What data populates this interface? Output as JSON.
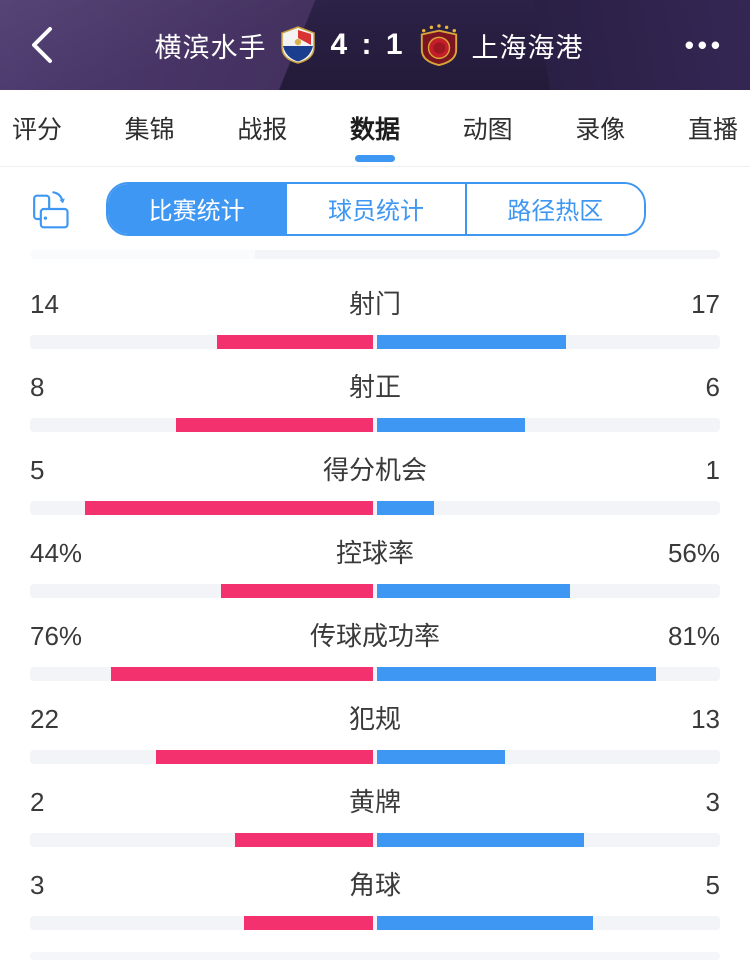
{
  "header": {
    "home_team": "横滨水手",
    "away_team": "上海海港",
    "score": "4 : 1",
    "more_label": "•••"
  },
  "tabs": {
    "items": [
      {
        "label": "评分",
        "active": false
      },
      {
        "label": "集锦",
        "active": false
      },
      {
        "label": "战报",
        "active": false
      },
      {
        "label": "数据",
        "active": true
      },
      {
        "label": "动图",
        "active": false
      },
      {
        "label": "录像",
        "active": false
      },
      {
        "label": "直播",
        "active": false
      }
    ]
  },
  "subtabs": {
    "items": [
      {
        "label": "比赛统计",
        "active": true
      },
      {
        "label": "球员统计",
        "active": false
      },
      {
        "label": "路径热区",
        "active": false
      }
    ]
  },
  "colors": {
    "home": "#f3316e",
    "away": "#3e97f2",
    "accent": "#3e97f2",
    "track": "#f2f4f8"
  },
  "chart_data": {
    "type": "bar",
    "title": "比赛统计",
    "home_team": "横滨水手",
    "away_team": "上海海港",
    "note": "paired horizontal bars from center; count rows scaled by value/sum, percent rows by value/100",
    "rows": [
      {
        "label": "射门",
        "home": 14,
        "away": 17,
        "is_percent": false
      },
      {
        "label": "射正",
        "home": 8,
        "away": 6,
        "is_percent": false
      },
      {
        "label": "得分机会",
        "home": 5,
        "away": 1,
        "is_percent": false
      },
      {
        "label": "控球率",
        "home": 44,
        "away": 56,
        "is_percent": true
      },
      {
        "label": "传球成功率",
        "home": 76,
        "away": 81,
        "is_percent": true
      },
      {
        "label": "犯规",
        "home": 22,
        "away": 13,
        "is_percent": false
      },
      {
        "label": "黄牌",
        "home": 2,
        "away": 3,
        "is_percent": false
      },
      {
        "label": "角球",
        "home": 3,
        "away": 5,
        "is_percent": false
      }
    ]
  }
}
